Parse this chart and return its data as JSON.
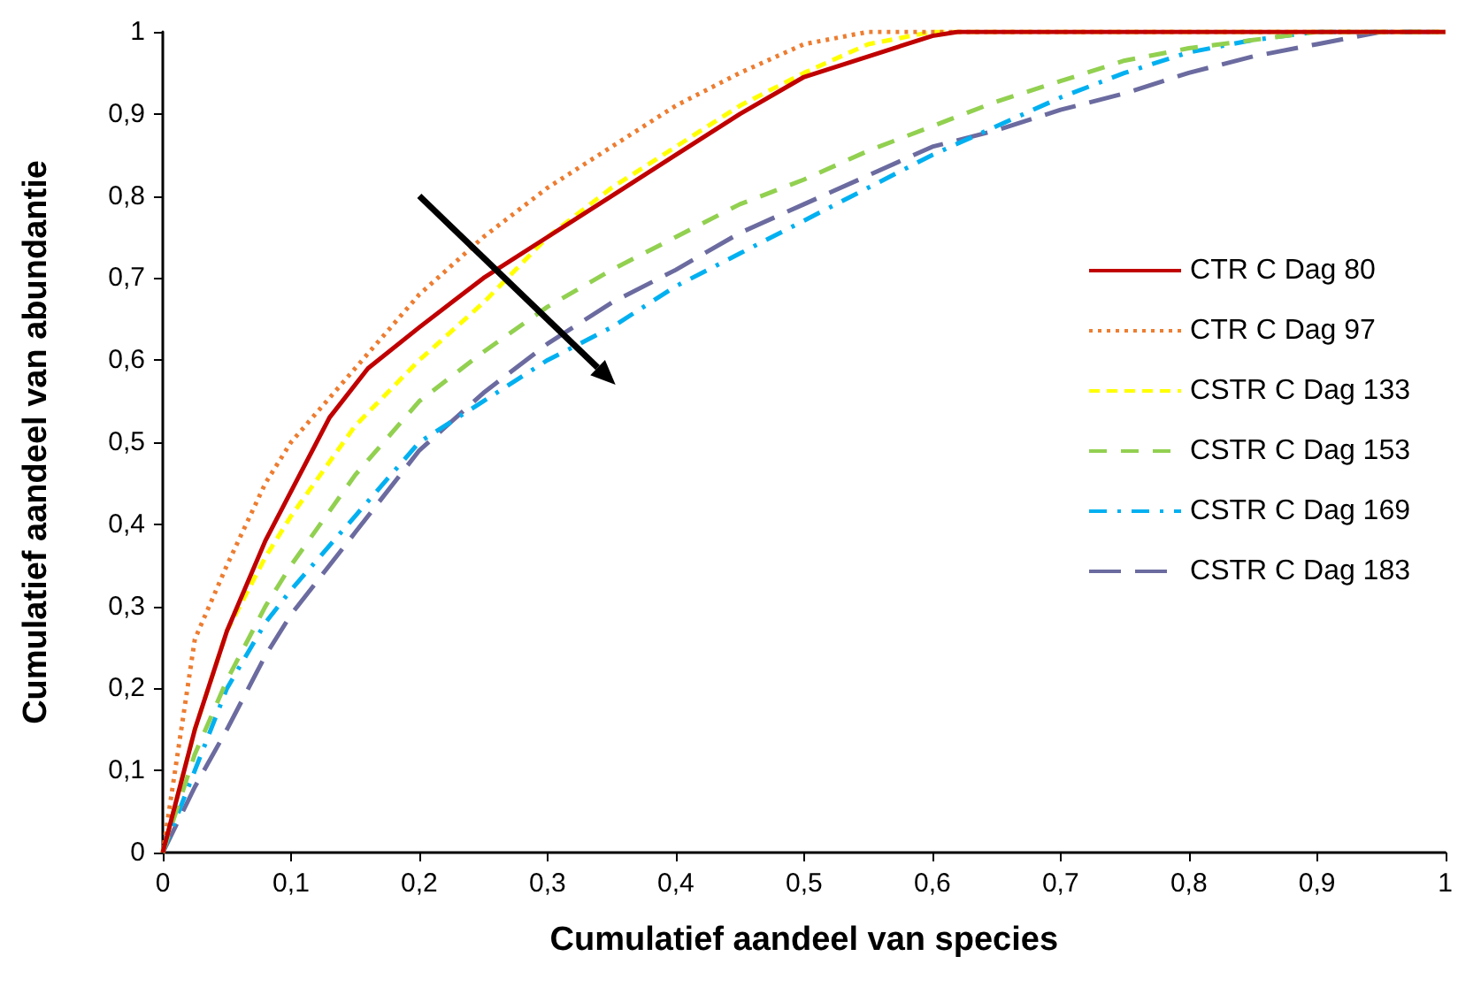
{
  "chart_data": {
    "type": "line",
    "xlabel": "Cumulatief aandeel van species",
    "ylabel": "Cumulatief aandeel van abundantie",
    "xlim": [
      0,
      1
    ],
    "ylim": [
      0,
      1
    ],
    "xticks": [
      0,
      {
        "value": 0.1,
        "label": "0,1"
      },
      {
        "value": 0.2,
        "label": "0,2"
      },
      {
        "value": 0.3,
        "label": "0,3"
      },
      {
        "value": 0.4,
        "label": "0,4"
      },
      {
        "value": 0.5,
        "label": "0,5"
      },
      {
        "value": 0.6,
        "label": "0,6"
      },
      {
        "value": 0.7,
        "label": "0,7"
      },
      {
        "value": 0.8,
        "label": "0,8"
      },
      {
        "value": 0.9,
        "label": "0,9"
      },
      1
    ],
    "yticks": [
      0,
      {
        "value": 0.1,
        "label": "0,1"
      },
      {
        "value": 0.2,
        "label": "0,2"
      },
      {
        "value": 0.3,
        "label": "0,3"
      },
      {
        "value": 0.4,
        "label": "0,4"
      },
      {
        "value": 0.5,
        "label": "0,5"
      },
      {
        "value": 0.6,
        "label": "0,6"
      },
      {
        "value": 0.7,
        "label": "0,7"
      },
      {
        "value": 0.8,
        "label": "0,8"
      },
      {
        "value": 0.9,
        "label": "0,9"
      },
      1
    ],
    "grid": false,
    "legend": "right",
    "marker": "none",
    "series": [
      {
        "name": "CTR C Dag 80",
        "color": "#c00000",
        "line_style": "solid",
        "x": [
          0,
          0.025,
          0.05,
          0.08,
          0.1,
          0.13,
          0.16,
          0.2,
          0.25,
          0.3,
          0.35,
          0.4,
          0.45,
          0.5,
          0.55,
          0.6,
          0.62,
          1
        ],
        "values": [
          0,
          0.15,
          0.27,
          0.38,
          0.44,
          0.53,
          0.59,
          0.64,
          0.7,
          0.75,
          0.8,
          0.85,
          0.9,
          0.945,
          0.97,
          0.995,
          1,
          1
        ]
      },
      {
        "name": "CTR C Dag 97",
        "color": "#ed7d31",
        "line_style": "dotted",
        "x": [
          0,
          0.025,
          0.05,
          0.08,
          0.1,
          0.15,
          0.2,
          0.25,
          0.3,
          0.35,
          0.4,
          0.45,
          0.5,
          0.55,
          1
        ],
        "values": [
          0,
          0.26,
          0.35,
          0.45,
          0.5,
          0.59,
          0.68,
          0.75,
          0.81,
          0.86,
          0.91,
          0.95,
          0.985,
          1,
          1
        ]
      },
      {
        "name": "CSTR C Dag 133",
        "color": "#ffff00",
        "line_style": "dashed",
        "x": [
          0,
          0.025,
          0.05,
          0.08,
          0.1,
          0.15,
          0.2,
          0.25,
          0.3,
          0.35,
          0.4,
          0.45,
          0.5,
          0.55,
          0.6,
          1
        ],
        "values": [
          0,
          0.15,
          0.27,
          0.36,
          0.41,
          0.52,
          0.6,
          0.67,
          0.75,
          0.81,
          0.86,
          0.91,
          0.95,
          0.985,
          1,
          1
        ]
      },
      {
        "name": "CSTR C Dag 153",
        "color": "#92d050",
        "line_style": "dashed",
        "x": [
          0,
          0.025,
          0.05,
          0.08,
          0.1,
          0.15,
          0.2,
          0.25,
          0.3,
          0.35,
          0.4,
          0.45,
          0.5,
          0.55,
          0.6,
          0.65,
          0.7,
          0.75,
          0.8,
          0.85,
          0.9,
          1
        ],
        "values": [
          0,
          0.12,
          0.21,
          0.3,
          0.35,
          0.46,
          0.55,
          0.61,
          0.665,
          0.71,
          0.75,
          0.79,
          0.82,
          0.855,
          0.885,
          0.915,
          0.94,
          0.965,
          0.98,
          0.99,
          1,
          1
        ]
      },
      {
        "name": "CSTR C Dag 169",
        "color": "#00b0f0",
        "line_style": "dashed",
        "x": [
          0,
          0.025,
          0.05,
          0.08,
          0.1,
          0.15,
          0.2,
          0.25,
          0.3,
          0.35,
          0.4,
          0.45,
          0.5,
          0.55,
          0.6,
          0.65,
          0.7,
          0.75,
          0.8,
          0.85,
          0.9,
          1
        ],
        "values": [
          0,
          0.1,
          0.2,
          0.28,
          0.32,
          0.41,
          0.5,
          0.55,
          0.6,
          0.64,
          0.69,
          0.73,
          0.77,
          0.81,
          0.85,
          0.885,
          0.92,
          0.95,
          0.975,
          0.99,
          1,
          1
        ]
      },
      {
        "name": "CSTR C Dag 183",
        "color": "#6b6ba0",
        "line_style": "dashed",
        "x": [
          0,
          0.025,
          0.05,
          0.08,
          0.1,
          0.15,
          0.2,
          0.25,
          0.3,
          0.35,
          0.4,
          0.45,
          0.5,
          0.55,
          0.6,
          0.65,
          0.7,
          0.75,
          0.8,
          0.85,
          0.9,
          0.95,
          1
        ],
        "values": [
          0,
          0.08,
          0.15,
          0.24,
          0.29,
          0.39,
          0.49,
          0.56,
          0.62,
          0.67,
          0.71,
          0.755,
          0.79,
          0.825,
          0.86,
          0.88,
          0.905,
          0.925,
          0.95,
          0.97,
          0.985,
          1,
          1
        ]
      }
    ]
  }
}
